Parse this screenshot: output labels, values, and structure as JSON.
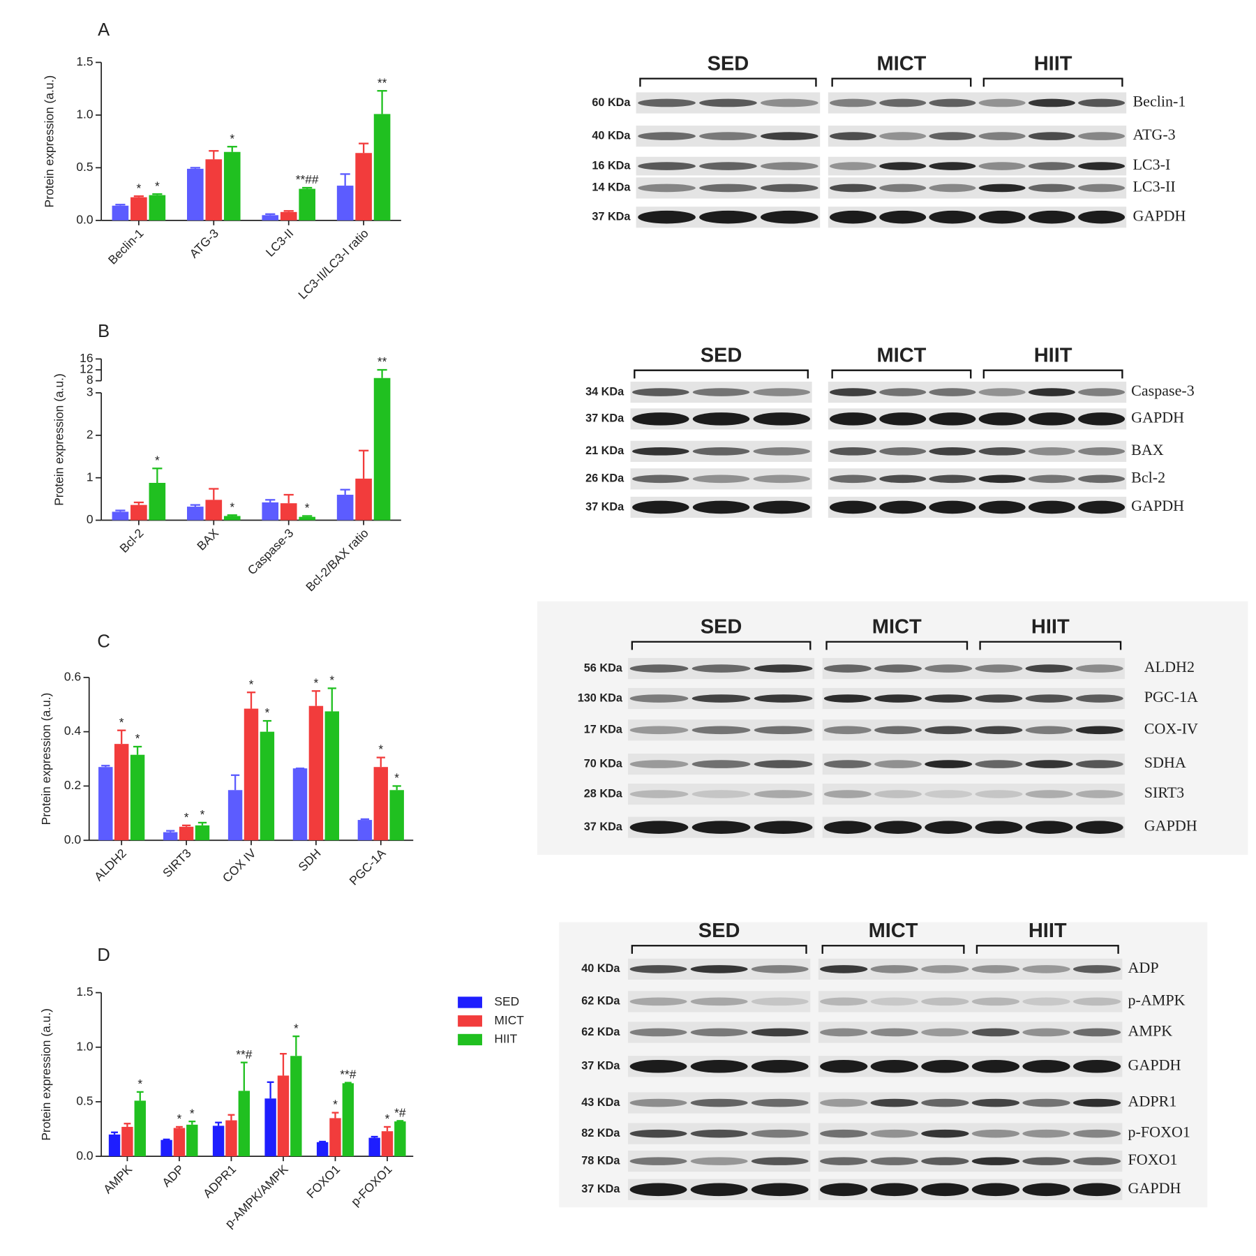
{
  "chart_data": [
    {
      "type": "bar",
      "panel": "A",
      "ylabel": "Protein expression (a.u.)",
      "categories": [
        "Beclin-1",
        "ATG-3",
        "LC3-II",
        "LC3-II/LC3-I ratio"
      ],
      "series": [
        {
          "color": "#5c5cff",
          "values": [
            0.14,
            0.49,
            0.05,
            0.33
          ],
          "errors": [
            0.01,
            0.01,
            0.01,
            0.11
          ],
          "annotations": [
            null,
            null,
            null,
            null
          ]
        },
        {
          "color": "#f23c3c",
          "values": [
            0.22,
            0.58,
            0.08,
            0.64
          ],
          "errors": [
            0.01,
            0.08,
            0.01,
            0.09
          ],
          "annotations": [
            "*",
            null,
            null,
            null
          ]
        },
        {
          "color": "#20c020",
          "values": [
            0.24,
            0.65,
            0.3,
            1.01
          ],
          "errors": [
            0.01,
            0.05,
            0.01,
            0.22
          ],
          "annotations": [
            "*",
            "*",
            "**##",
            "**"
          ]
        }
      ],
      "ylim": [
        0,
        1.5
      ],
      "yticks": [
        {
          "value": 0,
          "label": "0.0"
        },
        0.5,
        {
          "value": 1,
          "label": "1.0"
        },
        1.5
      ]
    },
    {
      "type": "bar",
      "panel": "B",
      "ylabel": "Protein expression (a.u.)",
      "categories": [
        "Bcl-2",
        "BAX",
        "Caspase-3",
        "Bcl-2/BAX ratio"
      ],
      "series": [
        {
          "color": "#5c5cff",
          "values": [
            0.2,
            0.32,
            0.42,
            0.6
          ],
          "errors": [
            0.03,
            0.04,
            0.06,
            0.12
          ],
          "annotations": [
            null,
            null,
            null,
            null
          ]
        },
        {
          "color": "#f23c3c",
          "values": [
            0.36,
            0.48,
            0.4,
            0.98
          ],
          "errors": [
            0.06,
            0.26,
            0.2,
            0.66
          ],
          "annotations": [
            null,
            null,
            null,
            null
          ]
        },
        {
          "color": "#20c020",
          "values": [
            0.88,
            0.1,
            0.08,
            9
          ],
          "errors": [
            0.34,
            0.02,
            0.02,
            3
          ],
          "annotations": [
            "*",
            "*",
            "*",
            "**"
          ]
        }
      ],
      "ylim": [
        0,
        16
      ],
      "ybreak": [
        3,
        8
      ],
      "yticks": [
        0,
        1,
        2,
        3,
        8,
        12,
        16
      ]
    },
    {
      "type": "bar",
      "panel": "C",
      "ylabel": "Protein expression (a.u.)",
      "categories": [
        "ALDH2",
        "SIRT3",
        "COX IV",
        "SDH",
        "PGC-1A"
      ],
      "series": [
        {
          "color": "#5c5cff",
          "values": [
            0.27,
            0.03,
            0.185,
            0.265,
            0.075
          ],
          "errors": [
            0.005,
            0.005,
            0.055,
            0,
            0.003
          ],
          "annotations": [
            null,
            null,
            null,
            null,
            null
          ]
        },
        {
          "color": "#f23c3c",
          "values": [
            0.355,
            0.05,
            0.485,
            0.495,
            0.27
          ],
          "errors": [
            0.05,
            0.005,
            0.06,
            0.055,
            0.035
          ],
          "annotations": [
            "*",
            "*",
            "*",
            "*",
            "*"
          ]
        },
        {
          "color": "#20c020",
          "values": [
            0.315,
            0.055,
            0.4,
            0.475,
            0.185
          ],
          "errors": [
            0.03,
            0.01,
            0.04,
            0.085,
            0.015
          ],
          "annotations": [
            "*",
            "*",
            "*",
            "*",
            "*"
          ]
        }
      ],
      "ylim": [
        0,
        0.6
      ],
      "yticks": [
        {
          "value": 0,
          "label": "0.0"
        },
        0.2,
        0.4,
        0.6
      ]
    },
    {
      "type": "bar",
      "panel": "D",
      "ylabel": "Protein expression (a.u.)",
      "categories": [
        "AMPK",
        "ADP",
        "ADPR1",
        "p-AMPK/AMPK",
        "FOXO1",
        "p-FOXO1"
      ],
      "series": [
        {
          "name": "SED",
          "color": "#1e1eff",
          "values": [
            0.2,
            0.15,
            0.28,
            0.53,
            0.13,
            0.17
          ],
          "errors": [
            0.02,
            0.005,
            0.03,
            0.15,
            0.005,
            0.01
          ],
          "annotations": [
            null,
            null,
            null,
            null,
            null,
            null
          ]
        },
        {
          "name": "MICT",
          "color": "#f23c3c",
          "values": [
            0.27,
            0.26,
            0.33,
            0.74,
            0.35,
            0.23
          ],
          "errors": [
            0.03,
            0.01,
            0.05,
            0.2,
            0.05,
            0.04
          ],
          "annotations": [
            null,
            "*",
            null,
            null,
            "*",
            "*"
          ]
        },
        {
          "name": "HIIT",
          "color": "#20c020",
          "values": [
            0.51,
            0.29,
            0.6,
            0.92,
            0.67,
            0.32
          ],
          "errors": [
            0.08,
            0.03,
            0.26,
            0.18,
            0.005,
            0.005
          ],
          "annotations": [
            "*",
            "*",
            "**#",
            "*",
            "**#",
            "*#"
          ]
        }
      ],
      "ylim": [
        0,
        1.5
      ],
      "yticks": [
        {
          "value": 0,
          "label": "0.0"
        },
        0.5,
        {
          "value": 1,
          "label": "1.0"
        },
        1.5
      ],
      "legend": "right"
    }
  ],
  "blots": [
    {
      "groups": [
        "SED",
        "MICT",
        "HIIT"
      ],
      "rows": [
        {
          "kda": "60 KDa",
          "name": "Beclin-1"
        },
        {
          "kda": "40 KDa",
          "name": "ATG-3"
        },
        {
          "kda": "16 KDa",
          "name": "LC3-I"
        },
        {
          "kda": "14 KDa",
          "name": "LC3-II"
        },
        {
          "kda": "37 KDa",
          "name": "GAPDH"
        }
      ]
    },
    {
      "groups": [
        "SED",
        "MICT",
        "HIIT"
      ],
      "rows": [
        {
          "kda": "34 KDa",
          "name": "Caspase-3"
        },
        {
          "kda": "37 KDa",
          "name": "GAPDH"
        },
        {
          "kda": "21 KDa",
          "name": "BAX"
        },
        {
          "kda": "26 KDa",
          "name": "Bcl-2"
        },
        {
          "kda": "37 KDa",
          "name": "GAPDH"
        }
      ]
    },
    {
      "groups": [
        "SED",
        "MICT",
        "HIIT"
      ],
      "rows": [
        {
          "kda": "56 KDa",
          "name": "ALDH2"
        },
        {
          "kda": "130 KDa",
          "name": "PGC-1A"
        },
        {
          "kda": "17 KDa",
          "name": "COX-IV"
        },
        {
          "kda": "70 KDa",
          "name": "SDHA"
        },
        {
          "kda": "28 KDa",
          "name": "SIRT3"
        },
        {
          "kda": "37 KDa",
          "name": "GAPDH"
        }
      ]
    },
    {
      "groups": [
        "SED",
        "MICT",
        "HIIT"
      ],
      "rows": [
        {
          "kda": "40 KDa",
          "name": "ADP"
        },
        {
          "kda": "62 KDa",
          "name": "p-AMPK"
        },
        {
          "kda": "62 KDa",
          "name": "AMPK"
        },
        {
          "kda": "37 KDa",
          "name": "GAPDH"
        },
        {
          "kda": "43 KDa",
          "name": "ADPR1"
        },
        {
          "kda": "82 KDa",
          "name": "p-FOXO1"
        },
        {
          "kda": "78 KDa",
          "name": "FOXO1"
        },
        {
          "kda": "37 KDa",
          "name": "GAPDH"
        }
      ]
    }
  ]
}
